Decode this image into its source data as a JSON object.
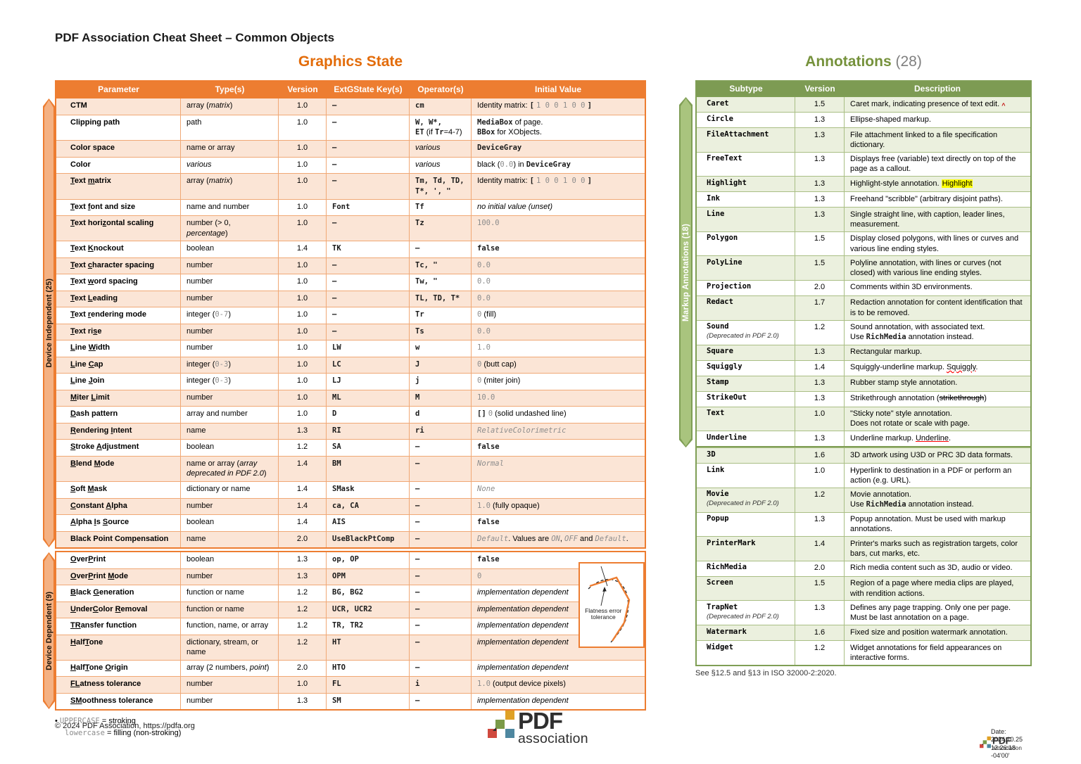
{
  "page": {
    "header_title": "PDF Association Cheat Sheet – Common Objects",
    "copyright": "© 2024 PDF Association, https://pdfa.org",
    "logo": {
      "brand": "PDF",
      "sub": "association"
    },
    "datestamp": [
      "Date:",
      "2024.10.25",
      "12:26:18",
      "-04'00'"
    ]
  },
  "graphics_state": {
    "title": "Graphics State",
    "columns": [
      "Parameter",
      "Type(s)",
      "Version",
      "ExtGState Key(s)",
      "Operator(s)",
      "Initial Value"
    ],
    "band1": "Device Independent (25)",
    "band2": "Device Dependent (9)",
    "flatness_label_1": "Flatness error",
    "flatness_label_2": "tolerance",
    "footnotes": [
      "~UPPERCASE~ = stroking",
      "~lowercase~ = filling (non-stroking)"
    ],
    "groups": [
      [
        {
          "param": "CTM",
          "type": "array (*matrix*)",
          "version": "1.0",
          "key": "`–`",
          "op": "`cm`",
          "init": "Identity matrix: `[` ~1 0 0 1 0 0~ `]`"
        },
        {
          "param": "Clipping path",
          "type": "path",
          "version": "1.0",
          "key": "`–`",
          "op": "`W, W*,`\n`ET` (if `Tr`=4-7)",
          "init": "`MediaBox` of page.\n`BBox` for XObjects."
        },
        {
          "param": "Color space",
          "type": "name or array",
          "version": "1.0",
          "key": "`–`",
          "op": "*various*",
          "init": "`DeviceGray`"
        },
        {
          "param": "Color",
          "type": "*various*",
          "version": "1.0",
          "key": "`–`",
          "op": "*various*",
          "init": "black (~0.0~) in `DeviceGray`"
        },
        {
          "param": "[T]ext [m]atrix",
          "type": "array (*matrix*)",
          "version": "1.0",
          "key": "`–`",
          "op": "`Tm, Td, TD,`\n`T*, ', \"`",
          "init": "Identity matrix: `[` ~1 0 0 1 0 0~ `]`"
        },
        {
          "param": "[T]ext [f]ont and size",
          "type": "name and number",
          "version": "1.0",
          "key": "`Font`",
          "op": "`Tf`",
          "init": "*no initial value (unset)*"
        },
        {
          "param": "[T]ext hori[z]ontal scaling",
          "type": "number (> 0, *percentage*)",
          "version": "1.0",
          "key": "`–`",
          "op": "`Tz`",
          "init": "~100.0~"
        },
        {
          "param": "[T]ext [K]nockout",
          "type": "boolean",
          "version": "1.4",
          "key": "`TK`",
          "op": "`–`",
          "init": "`false`"
        },
        {
          "param": "[T]ext [c]haracter spacing",
          "type": "number",
          "version": "1.0",
          "key": "`–`",
          "op": "`Tc, \"`",
          "init": "~0.0~"
        },
        {
          "param": "[T]ext [w]ord spacing",
          "type": "number",
          "version": "1.0",
          "key": "`–`",
          "op": "`Tw, \"`",
          "init": "~0.0~"
        },
        {
          "param": "[T]ext [L]eading",
          "type": "number",
          "version": "1.0",
          "key": "`–`",
          "op": "`TL, TD, T*`",
          "init": "~0.0~"
        },
        {
          "param": "[T]ext [r]endering mode",
          "type": "integer (~0-7~)",
          "version": "1.0",
          "key": "`–`",
          "op": "`Tr`",
          "init": "~0~ (fill)"
        },
        {
          "param": "[T]ext ri[s]e",
          "type": "number",
          "version": "1.0",
          "key": "`–`",
          "op": "`Ts`",
          "init": "~0.0~"
        },
        {
          "param": "[L]ine [W]idth",
          "type": "number",
          "version": "1.0",
          "key": "`LW`",
          "op": "`w`",
          "init": "~1.0~"
        },
        {
          "param": "[L]ine [C]ap",
          "type": "integer (~0-3~)",
          "version": "1.0",
          "key": "`LC`",
          "op": "`J`",
          "init": "~0~  (butt cap)"
        },
        {
          "param": "[L]ine [J]oin",
          "type": "integer (~0-3~)",
          "version": "1.0",
          "key": "`LJ`",
          "op": "`j`",
          "init": "~0~  (miter join)"
        },
        {
          "param": "[M]iter [L]imit",
          "type": "number",
          "version": "1.0",
          "key": "`ML`",
          "op": "`M`",
          "init": "~10.0~"
        },
        {
          "param": "[D]ash pattern",
          "type": "array and number",
          "version": "1.0",
          "key": "`D`",
          "op": "`d`",
          "init": "`[]` ~0~ (solid undashed line)"
        },
        {
          "param": "[R]endering [I]ntent",
          "type": "name",
          "version": "1.3",
          "key": "`RI`",
          "op": "`ri`",
          "init": "%RelativeColorimetric%"
        },
        {
          "param": "[S]troke [A]djustment",
          "type": "boolean",
          "version": "1.2",
          "key": "`SA`",
          "op": "`–`",
          "init": "`false`"
        },
        {
          "param": "[B]lend [M]ode",
          "type": "name or array (*array deprecated in PDF 2.0*)",
          "version": "1.4",
          "key": "`BM`",
          "op": "`–`",
          "init": "%Normal%"
        },
        {
          "param": "[S]oft [M]ask",
          "type": "dictionary or name",
          "version": "1.4",
          "key": "`SMask`",
          "op": "`–`",
          "init": "%None%"
        },
        {
          "param": "[C]onstant [A]lpha",
          "type": "number",
          "version": "1.4",
          "key": "`ca, CA`",
          "op": "`–`",
          "init": "~1.0~ (fully opaque)"
        },
        {
          "param": "[A]lpha [I]s [S]ource",
          "type": "boolean",
          "version": "1.4",
          "key": "`AIS`",
          "op": "`–`",
          "init": "`false`"
        },
        {
          "param": "Black Point Compensation",
          "type": "name",
          "version": "2.0",
          "key": "`UseBlackPtComp`",
          "op": "`–`",
          "init": "%Default%. Values are %ON%, %OFF% and %Default%."
        }
      ],
      [
        {
          "param": "[O]ver[P]rint",
          "type": "boolean",
          "version": "1.3",
          "key": "`op, OP`",
          "op": "`–`",
          "init": "`false`"
        },
        {
          "param": "[O]ver[P]rint [M]ode",
          "type": "number",
          "version": "1.3",
          "key": "`OPM`",
          "op": "`–`",
          "init": "~0~"
        },
        {
          "param": "[B]lack [G]eneration",
          "type": "function or name",
          "version": "1.2",
          "key": "`BG, BG2`",
          "op": "`–`",
          "init": "*implementation dependent*"
        },
        {
          "param": "[U]nder[C]olor [R]emoval",
          "type": "function or name",
          "version": "1.2",
          "key": "`UCR, UCR2`",
          "op": "`–`",
          "init": "*implementation dependent*"
        },
        {
          "param": "[T][R]ansfer function",
          "type": "function, name, or array",
          "version": "1.2",
          "key": "`TR, TR2`",
          "op": "`–`",
          "init": "*implementation dependent*"
        },
        {
          "param": "[H]alf[T]one",
          "type": "dictionary, stream, or name",
          "version": "1.2",
          "key": "`HT`",
          "op": "`–`",
          "init": "*implementation dependent*"
        },
        {
          "param": "[H]alf[T]one [O]rigin",
          "type": "array (2 numbers, *point*)",
          "version": "2.0",
          "key": "`HTO`",
          "op": "`–`",
          "init": "*implementation dependent*"
        },
        {
          "param": "[F][L]atness tolerance",
          "type": "number",
          "version": "1.0",
          "key": "`FL`",
          "op": "`i`",
          "init": "~1.0~ (output device pixels)"
        },
        {
          "param": "[S][M]oothness tolerance",
          "type": "number",
          "version": "1.3",
          "key": "`SM`",
          "op": "`–`",
          "init": "*implementation dependent*"
        }
      ]
    ]
  },
  "annotations": {
    "title": "Annotations",
    "count": "(28)",
    "columns": [
      "Subtype",
      "Version",
      "Description"
    ],
    "band": "Markup Annotations (18)",
    "markup_count": 18,
    "footnote": "See §12.5 and §13 in ISO 32000-2:2020.",
    "rows": [
      {
        "subtype": "Caret",
        "version": "1.5",
        "desc": "Caret mark, indicating presence of text edit. @@"
      },
      {
        "subtype": "Circle",
        "version": "1.3",
        "desc": "Ellipse-shaped markup."
      },
      {
        "subtype": "FileAttachment",
        "version": "1.3",
        "desc": "File attachment linked to a file specification dictionary."
      },
      {
        "subtype": "FreeText",
        "version": "1.3",
        "desc": "Displays free (variable) text directly on top of the page as a callout."
      },
      {
        "subtype": "Highlight",
        "version": "1.3",
        "desc": "Highlight-style annotation. ==Highlight=="
      },
      {
        "subtype": "Ink",
        "version": "1.3",
        "desc": "Freehand \"scribble\" (arbitrary disjoint paths)."
      },
      {
        "subtype": "Line",
        "version": "1.3",
        "desc": "Single straight line, with caption, leader lines, measurement."
      },
      {
        "subtype": "Polygon",
        "version": "1.5",
        "desc": "Display closed polygons, with lines or curves and various line ending styles."
      },
      {
        "subtype": "PolyLine",
        "version": "1.5",
        "desc": "Polyline annotation, with lines or curves (not closed) with various line ending styles."
      },
      {
        "subtype": "Projection",
        "version": "2.0",
        "desc": "Comments within 3D environments."
      },
      {
        "subtype": "Redact",
        "version": "1.7",
        "desc": "Redaction annotation for content identification that is to be removed."
      },
      {
        "subtype": "Sound",
        "deprecated": "(Deprecated in PDF 2.0)",
        "version": "1.2",
        "desc": "Sound annotation, with associated text.\nUse `RichMedia` annotation instead."
      },
      {
        "subtype": "Square",
        "version": "1.3",
        "desc": "Rectangular markup."
      },
      {
        "subtype": "Squiggly",
        "version": "1.4",
        "desc": "Squiggly-underline markup. ^^Squiggly^^."
      },
      {
        "subtype": "Stamp",
        "version": "1.3",
        "desc": "Rubber stamp style annotation."
      },
      {
        "subtype": "StrikeOut",
        "version": "1.3",
        "desc": "Strikethrough annotation (~~strikethrough~~)"
      },
      {
        "subtype": "Text",
        "version": "1.0",
        "desc": "\"Sticky note\" style annotation.\nDoes not rotate or scale with page."
      },
      {
        "subtype": "Underline",
        "version": "1.3",
        "desc": "Underline markup. __Underline__."
      },
      {
        "subtype": "3D",
        "version": "1.6",
        "desc": "3D artwork using U3D or PRC 3D data formats."
      },
      {
        "subtype": "Link",
        "version": "1.0",
        "desc": "Hyperlink to destination in a PDF or perform an action (e.g. URL)."
      },
      {
        "subtype": "Movie",
        "deprecated": "(Deprecated in PDF 2.0)",
        "version": "1.2",
        "desc": "Movie annotation.\nUse `RichMedia` annotation instead."
      },
      {
        "subtype": "Popup",
        "version": "1.3",
        "desc": "Popup annotation. Must be used with markup annotations."
      },
      {
        "subtype": "PrinterMark",
        "version": "1.4",
        "desc": "Printer's marks such as registration targets, color bars, cut marks, etc."
      },
      {
        "subtype": "RichMedia",
        "version": "2.0",
        "desc": "Rich media content such as 3D, audio or video."
      },
      {
        "subtype": "Screen",
        "version": "1.5",
        "desc": "Region of a page where media clips are played, with rendition actions."
      },
      {
        "subtype": "TrapNet",
        "deprecated": "(Deprecated in PDF 2.0)",
        "version": "1.3",
        "desc": "Defines any page trapping. Only one per page.\nMust be last annotation on a page."
      },
      {
        "subtype": "Watermark",
        "version": "1.6",
        "desc": "Fixed size and position watermark annotation."
      },
      {
        "subtype": "Widget",
        "version": "1.2",
        "desc": "Widget annotations for field appearances on interactive forms."
      }
    ],
    "colors": {
      "header": "#7D9B53",
      "row_alt": "#EBF0DE",
      "band_fill": "#A9C47E",
      "title": "#76923C"
    }
  },
  "colors": {
    "orange_header": "#ED7D31",
    "orange_row_alt": "#FBE5D6",
    "orange_band_fill": "#F4B183",
    "gs_title": "#E36C0A",
    "highlight": "#FFFF00",
    "red_accent": "#FF0000"
  }
}
